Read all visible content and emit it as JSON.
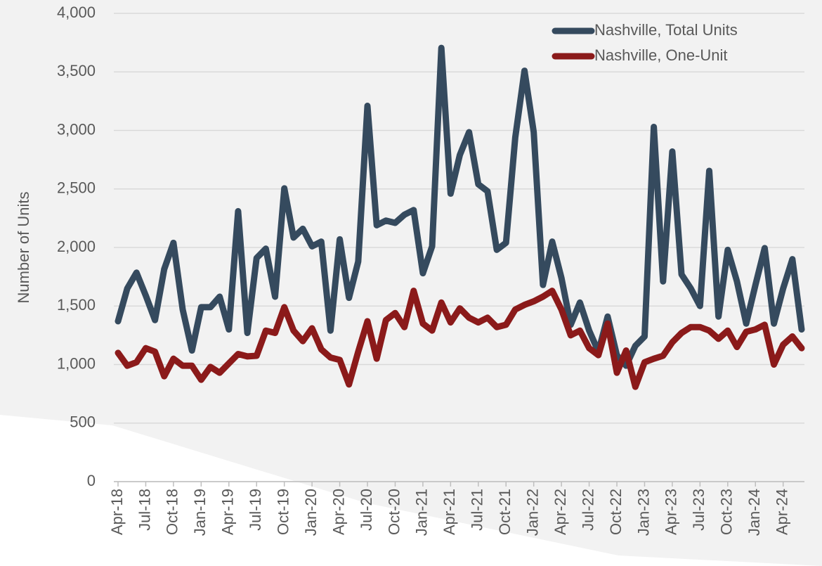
{
  "chart_data": {
    "type": "line",
    "ylabel": "Number of Units",
    "categories": [
      "Apr-18",
      null,
      null,
      "Jul-18",
      null,
      null,
      "Oct-18",
      null,
      null,
      "Jan-19",
      null,
      null,
      "Apr-19",
      null,
      null,
      "Jul-19",
      null,
      null,
      "Oct-19",
      null,
      null,
      "Jan-20",
      null,
      null,
      "Apr-20",
      null,
      null,
      "Jul-20",
      null,
      null,
      "Oct-20",
      null,
      null,
      "Jan-21",
      null,
      null,
      "Apr-21",
      null,
      null,
      "Jul-21",
      null,
      null,
      "Oct-21",
      null,
      null,
      "Jan-22",
      null,
      null,
      "Apr-22",
      null,
      null,
      "Jul-22",
      null,
      null,
      "Oct-22",
      null,
      null,
      "Jan-23",
      null,
      null,
      "Apr-23",
      null,
      null,
      "Jul-23",
      null,
      null,
      "Oct-23",
      null,
      null,
      "Jan-24",
      null,
      null,
      "Apr-24",
      null,
      null
    ],
    "series": [
      {
        "name": "Nashville, Total Units",
        "color": "#354a5e",
        "values": [
          1370,
          1650,
          1785,
          1590,
          1380,
          1815,
          2040,
          1470,
          1120,
          1490,
          1490,
          1580,
          1300,
          2310,
          1270,
          1910,
          1990,
          1580,
          2505,
          2085,
          2160,
          2010,
          2050,
          1290,
          2070,
          1570,
          1880,
          3210,
          2190,
          2230,
          2210,
          2280,
          2320,
          1780,
          2010,
          3705,
          2460,
          2790,
          2985,
          2540,
          2480,
          1980,
          2040,
          2940,
          3510,
          2985,
          1680,
          2050,
          1740,
          1340,
          1530,
          1290,
          1110,
          1410,
          1080,
          990,
          1160,
          1240,
          3030,
          1710,
          2820,
          1770,
          1650,
          1500,
          2655,
          1410,
          1980,
          1710,
          1350,
          1680,
          1995,
          1350,
          1650,
          1900,
          1300
        ]
      },
      {
        "name": "Nashville, One-Unit",
        "color": "#8b1a1a",
        "values": [
          1100,
          990,
          1020,
          1140,
          1110,
          900,
          1050,
          990,
          990,
          870,
          980,
          930,
          1010,
          1090,
          1070,
          1075,
          1290,
          1270,
          1490,
          1290,
          1200,
          1310,
          1130,
          1060,
          1040,
          830,
          1110,
          1370,
          1050,
          1380,
          1440,
          1320,
          1630,
          1350,
          1290,
          1530,
          1360,
          1480,
          1400,
          1360,
          1400,
          1320,
          1340,
          1470,
          1510,
          1540,
          1580,
          1630,
          1470,
          1250,
          1290,
          1140,
          1080,
          1350,
          930,
          1120,
          810,
          1020,
          1050,
          1075,
          1190,
          1270,
          1320,
          1320,
          1290,
          1220,
          1290,
          1150,
          1280,
          1300,
          1340,
          1000,
          1170,
          1240,
          1140
        ]
      }
    ],
    "ylim": [
      0,
      4000
    ],
    "yticks": [
      0,
      500,
      {
        "value": 1000,
        "label": "1,000"
      },
      {
        "value": 1500,
        "label": "1,500"
      },
      {
        "value": 2000,
        "label": "2,000"
      },
      {
        "value": 2500,
        "label": "2,500"
      },
      {
        "value": 3000,
        "label": "3,000"
      },
      {
        "value": 3500,
        "label": "3,500"
      },
      {
        "value": 4000,
        "label": "4,000"
      }
    ],
    "grid": true,
    "legend": "top-right"
  }
}
